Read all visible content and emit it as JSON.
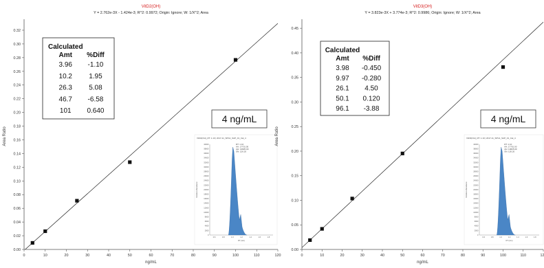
{
  "charts": [
    {
      "type": "scatter",
      "title": "VitD2(OH)",
      "equation": "Y = 2.762e-3X - 1.424e-3; R^2: 0.9972; Origin: Ignore; W: 1/X^2; Area",
      "xlabel": "ng/mL",
      "ylabel": "Area Ratio",
      "xlim": [
        0,
        120
      ],
      "ylim": [
        0,
        0.33
      ],
      "x_ticks": [
        "0",
        "10",
        "20",
        "30",
        "40",
        "50",
        "60",
        "70",
        "80",
        "90",
        "100",
        "110",
        "120"
      ],
      "y_ticks": [
        "0.00",
        "0.02",
        "0.04",
        "0.06",
        "0.08",
        "0.10",
        "0.12",
        "0.14",
        "0.16",
        "0.18",
        "0.20",
        "0.22",
        "0.24",
        "0.26",
        "0.28",
        "0.30",
        "0.32"
      ],
      "points": [
        {
          "x": 4,
          "y": 0.0096
        },
        {
          "x": 10,
          "y": 0.0266
        },
        {
          "x": 25,
          "y": 0.0711
        },
        {
          "x": 50,
          "y": 0.1274
        },
        {
          "x": 100,
          "y": 0.2767
        }
      ],
      "fit": {
        "slope": 0.002762,
        "intercept": -0.001424
      },
      "table": {
        "header1": "Calculated",
        "header2": "Amt",
        "header3": "%Diff",
        "rows": [
          {
            "amt": "3.96",
            "diff": "-1.10"
          },
          {
            "amt": "10.2",
            "diff": "1.95"
          },
          {
            "amt": "26.3",
            "diff": "5.08"
          },
          {
            "amt": "46.7",
            "diff": "-6.58"
          },
          {
            "amt": "101",
            "diff": "0.640"
          }
        ]
      },
      "conc_label": "4 ng/mL",
      "inset": {
        "header": "VitD2(OH)_RT: 1.10 | 2017-11_SPG1_SAP_01_Cal_4",
        "rt": "RT: 1.10",
        "area": "AA: 17701.00",
        "height": "AH: 13825.00",
        "sn": "SN: 126.20",
        "ylabel": "Relative Abundance",
        "xlabel": "RT (min)",
        "x_ticks": [
          "0.6",
          "0.8",
          "1.0",
          "1.2",
          "1.4",
          "1.6",
          "1.8"
        ],
        "y_ticks": [
          "0",
          "2000",
          "4000",
          "6000",
          "8000",
          "10000",
          "12000",
          "14000",
          "16000",
          "18000",
          "20000",
          "22000",
          "24000",
          "26000",
          "28000",
          "30000",
          "32000",
          "34000",
          "36000",
          "38000",
          "40000"
        ]
      }
    },
    {
      "type": "scatter",
      "title": "VitD3(OH)",
      "equation": "Y = 3.823e-3X + 3.774e-3; R^2: 0.9986; Origin: Ignore; W: 1/X^2; Area",
      "xlabel": "ng/mL",
      "ylabel": "Area Ratio",
      "xlim": [
        0,
        120
      ],
      "ylim": [
        0,
        0.46
      ],
      "x_ticks": [
        "0",
        "10",
        "20",
        "30",
        "40",
        "50",
        "60",
        "70",
        "80",
        "90",
        "100",
        "110",
        "120"
      ],
      "y_ticks": [
        "0.00",
        "0.05",
        "0.10",
        "0.15",
        "0.20",
        "0.25",
        "0.30",
        "0.35",
        "0.40",
        "0.45"
      ],
      "points": [
        {
          "x": 4,
          "y": 0.019
        },
        {
          "x": 10,
          "y": 0.0419
        },
        {
          "x": 25,
          "y": 0.1036
        },
        {
          "x": 50,
          "y": 0.1953
        },
        {
          "x": 100,
          "y": 0.3711
        }
      ],
      "fit": {
        "slope": 0.003823,
        "intercept": 0.003774
      },
      "table": {
        "header1": "Calculated",
        "header2": "Amt",
        "header3": "%Diff",
        "rows": [
          {
            "amt": "3.98",
            "diff": "-0.450"
          },
          {
            "amt": "9.97",
            "diff": "-0.280"
          },
          {
            "amt": "26.1",
            "diff": "4.50"
          },
          {
            "amt": "50.1",
            "diff": "0.120"
          },
          {
            "amt": "96.1",
            "diff": "-3.88"
          }
        ]
      },
      "conc_label": "4 ng/mL",
      "inset": {
        "header": "VitD3(OH)_RT: 1.10 | 2017-11_SPG1_SAP_01_Cal_4",
        "rt": "RT: 1.10",
        "area": "AA: 17701.00",
        "height": "AH: 13825.00",
        "sn": "SN: 126.20",
        "ylabel": "Relative Abundance",
        "xlabel": "RT (min)",
        "x_ticks": [
          "0.6",
          "0.8",
          "1.0",
          "1.2",
          "1.4",
          "1.6",
          "1.8"
        ],
        "y_ticks": [
          "0",
          "2000",
          "4000",
          "6000",
          "8000",
          "10000",
          "12000",
          "14000",
          "16000",
          "18000",
          "20000",
          "22000",
          "24000",
          "26000",
          "28000",
          "30000",
          "32000",
          "34000",
          "36000",
          "38000",
          "40000"
        ]
      }
    }
  ],
  "chart_data": [
    {
      "type": "scatter",
      "title": "VitD2(OH)",
      "subtitle": "Y = 2.762e-3X - 1.424e-3; R^2: 0.9972; Origin: Ignore; W: 1/X^2; Area",
      "xlabel": "ng/mL",
      "ylabel": "Area Ratio",
      "xlim": [
        0,
        120
      ],
      "ylim": [
        0,
        0.33
      ],
      "x": [
        4,
        10,
        25,
        50,
        100
      ],
      "y": [
        0.0096,
        0.0266,
        0.0711,
        0.1274,
        0.2767
      ],
      "fit_line": {
        "slope": 0.002762,
        "intercept": -0.001424
      },
      "grid": false,
      "legend": "none"
    },
    {
      "type": "scatter",
      "title": "VitD3(OH)",
      "subtitle": "Y = 3.823e-3X + 3.774e-3; R^2: 0.9986; Origin: Ignore; W: 1/X^2; Area",
      "xlabel": "ng/mL",
      "ylabel": "Area Ratio",
      "xlim": [
        0,
        120
      ],
      "ylim": [
        0,
        0.46
      ],
      "x": [
        4,
        10,
        25,
        50,
        100
      ],
      "y": [
        0.019,
        0.0419,
        0.1036,
        0.1953,
        0.3711
      ],
      "fit_line": {
        "slope": 0.003823,
        "intercept": 0.003774
      },
      "grid": false,
      "legend": "none"
    }
  ]
}
